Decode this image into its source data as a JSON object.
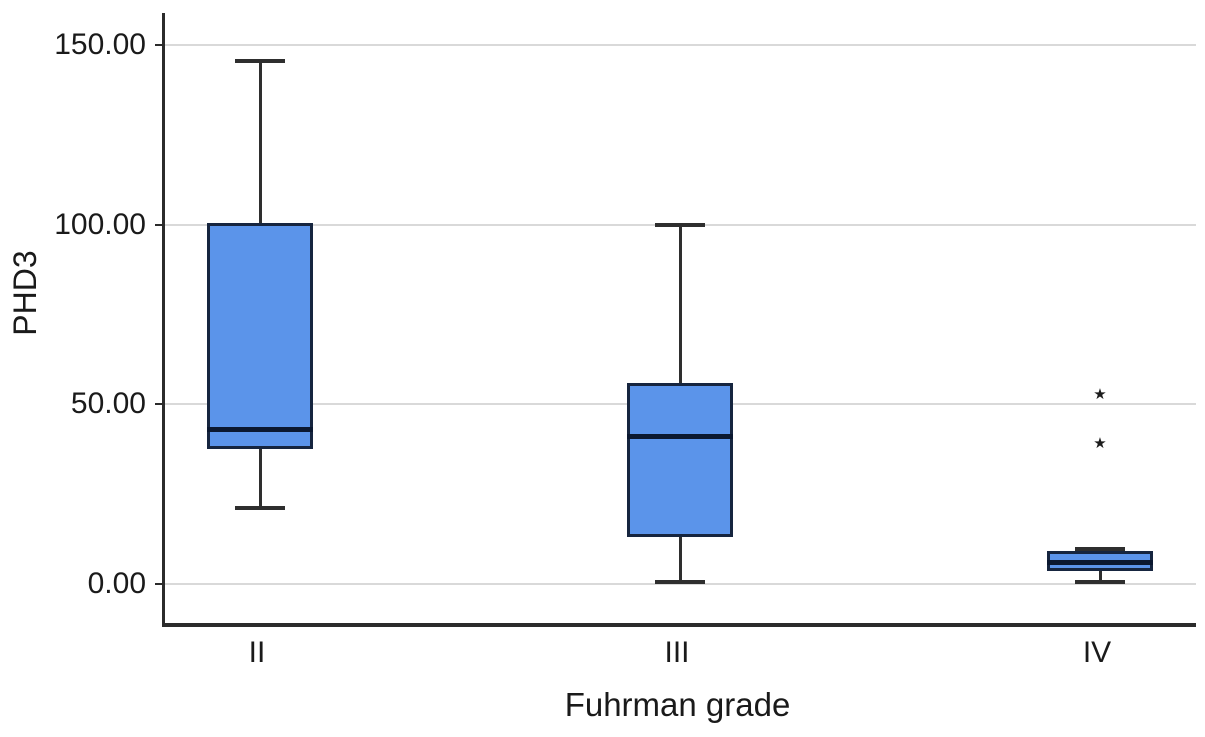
{
  "chart_data": {
    "type": "boxplot",
    "title": "",
    "xlabel": "Fuhrman grade",
    "ylabel": "PHD3",
    "categories": [
      "II",
      "III",
      "IV"
    ],
    "y_tick_values": [
      0,
      50,
      100,
      150
    ],
    "y_tick_labels": [
      "0.00",
      "50.00",
      "100.00",
      "150.00"
    ],
    "ylim": [
      -11,
      159
    ],
    "grid": true,
    "legend": false,
    "series": [
      {
        "category": "II",
        "whisker_low": 21,
        "q1": 37.5,
        "median": 43,
        "q3": 100.5,
        "whisker_high": 145.5,
        "outliers": []
      },
      {
        "category": "III",
        "whisker_low": 0.5,
        "q1": 13,
        "median": 41,
        "q3": 56,
        "whisker_high": 100,
        "outliers": []
      },
      {
        "category": "IV",
        "whisker_low": 0.5,
        "q1": 3.5,
        "median": 6,
        "q3": 9,
        "whisker_high": 9.5,
        "outliers": [
          52.5,
          39
        ]
      }
    ],
    "outlier_marker": "star",
    "colors": {
      "box_fill": "#5b94ea",
      "box_border": "#16253f",
      "median_line": "#0b1830",
      "whisker": "#2e2e2e",
      "gridline": "#d9d9d9",
      "axis": "#2b2b2b",
      "text": "#1a1a1a",
      "outlier": "#1c1c1c",
      "background": "#ffffff"
    }
  }
}
